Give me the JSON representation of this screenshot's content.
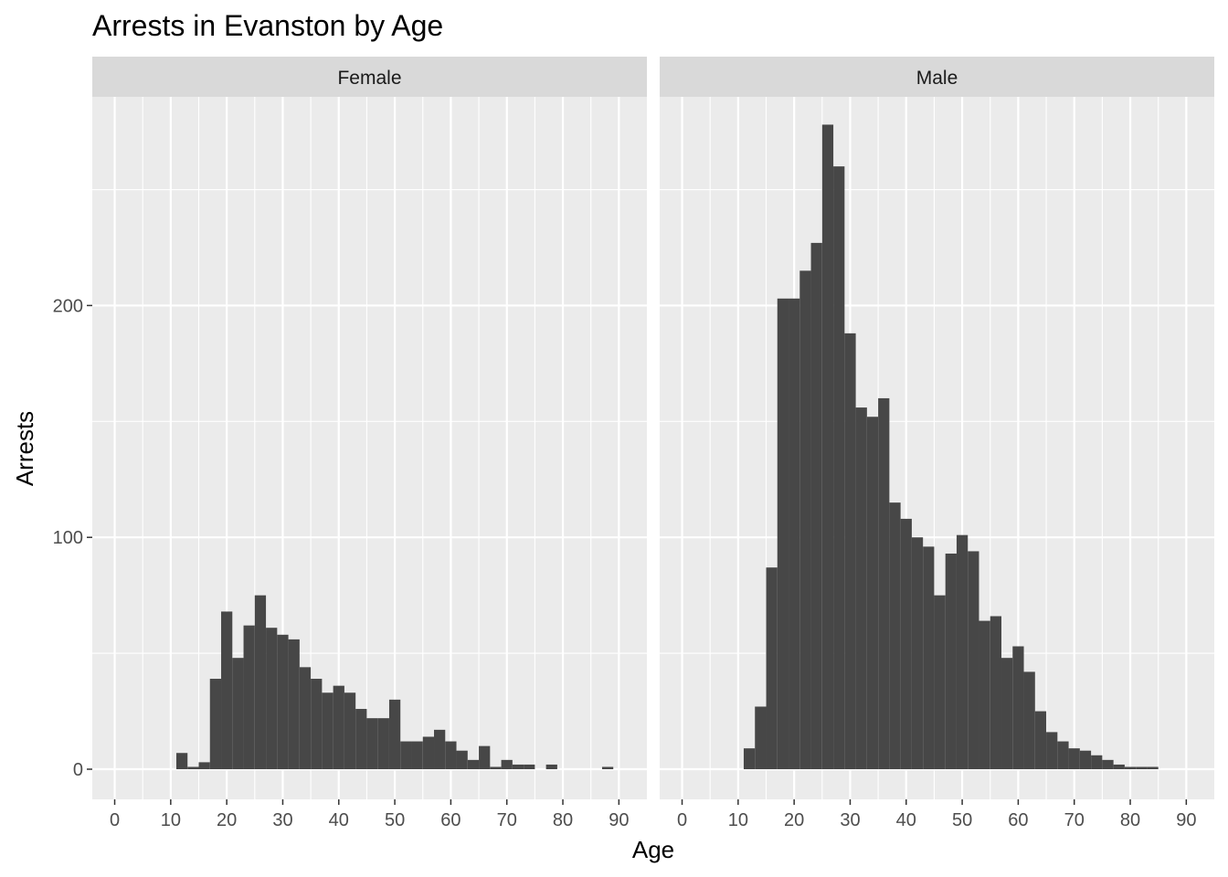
{
  "chart_data": {
    "type": "bar",
    "chart_kind": "faceted histogram",
    "title": "Arrests in Evanston by Age",
    "xlabel": "Age",
    "ylabel": "Arrests",
    "xlim": [
      -4,
      95
    ],
    "ylim": [
      -13,
      290
    ],
    "x_ticks": [
      0,
      10,
      20,
      30,
      40,
      50,
      60,
      70,
      80,
      90
    ],
    "y_ticks": [
      0,
      100,
      200
    ],
    "grid": true,
    "bin_width": 2,
    "bin_centers": [
      12,
      14,
      16,
      18,
      20,
      22,
      24,
      26,
      28,
      30,
      32,
      34,
      36,
      38,
      40,
      42,
      44,
      46,
      48,
      50,
      52,
      54,
      56,
      58,
      60,
      62,
      64,
      66,
      68,
      70,
      72,
      74,
      76,
      78,
      80,
      82,
      84,
      86,
      88
    ],
    "colors": {
      "bar": "#474747",
      "panel": "#ebebeb",
      "strip": "#d9d9d9",
      "grid": "#ffffff"
    },
    "facets": [
      {
        "name": "Female",
        "values": [
          7,
          1,
          3,
          39,
          68,
          48,
          62,
          75,
          61,
          58,
          56,
          44,
          39,
          33,
          36,
          33,
          26,
          22,
          22,
          30,
          12,
          12,
          14,
          17,
          12,
          8,
          4,
          10,
          1,
          4,
          2,
          2,
          0,
          2,
          0,
          0,
          0,
          0,
          1
        ]
      },
      {
        "name": "Male",
        "values": [
          9,
          27,
          87,
          203,
          203,
          215,
          227,
          278,
          260,
          188,
          156,
          152,
          160,
          115,
          108,
          100,
          96,
          75,
          93,
          101,
          94,
          64,
          66,
          48,
          53,
          42,
          25,
          16,
          12,
          9,
          8,
          6,
          4,
          2,
          1,
          1,
          1,
          0,
          0
        ]
      }
    ]
  }
}
